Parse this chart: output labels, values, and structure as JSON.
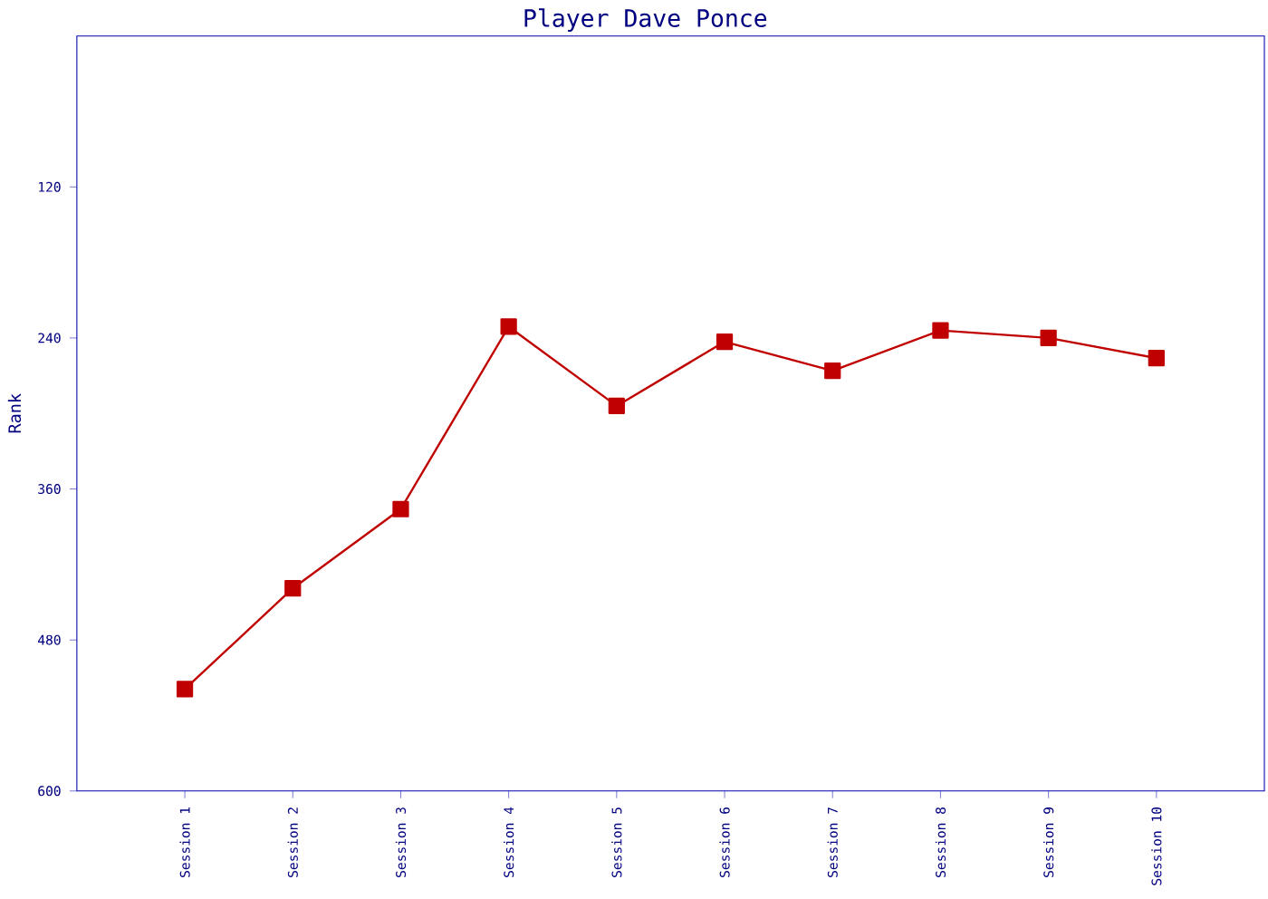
{
  "chart_data": {
    "type": "line",
    "title": "Player Dave Ponce",
    "ylabel": "Rank",
    "categories": [
      "Session 1",
      "Session 2",
      "Session 3",
      "Session 4",
      "Session 5",
      "Session 6",
      "Session 7",
      "Session 8",
      "Session 9",
      "Session 10"
    ],
    "series": [
      {
        "color": "#c00000",
        "values": [
          519,
          439,
          376,
          231,
          294,
          243,
          266,
          234,
          240,
          256
        ]
      }
    ],
    "ylim": [
      600,
      0
    ],
    "yticks": [
      120,
      240,
      360,
      480,
      600
    ],
    "marker": "square",
    "line_style": "solid",
    "grid": false
  }
}
